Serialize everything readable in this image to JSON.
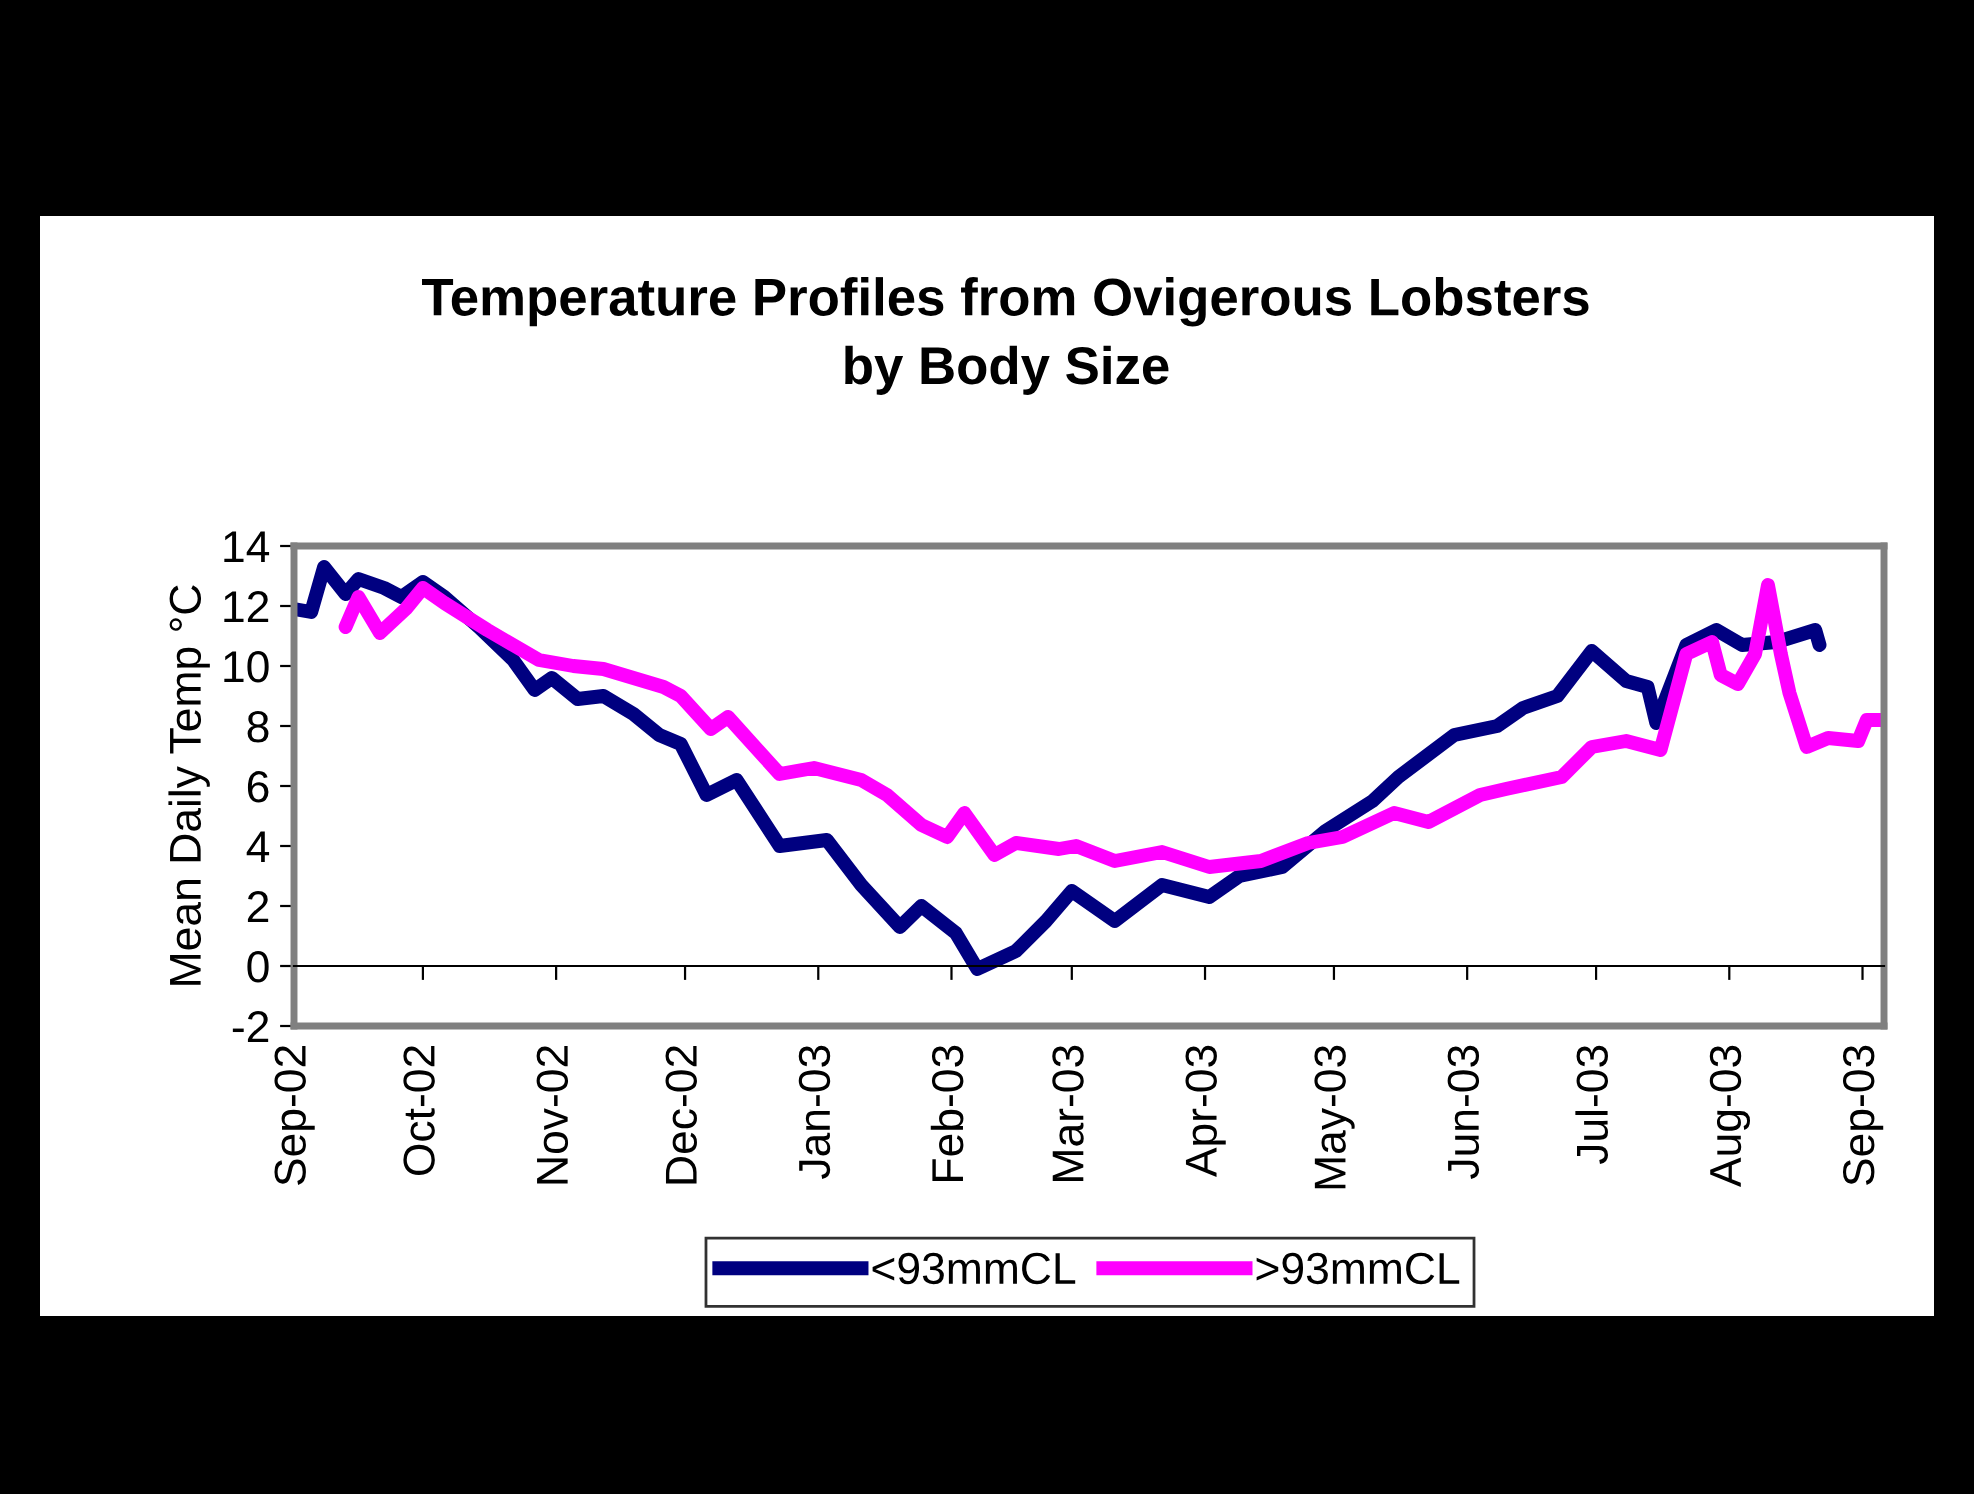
{
  "chart_data": {
    "type": "line",
    "title": "Temperature Profiles from Ovigerous Lobsters\nby Body Size",
    "ylabel": "Mean Daily Temp °C",
    "xlim": [
      "2002-09-01",
      "2003-09-06"
    ],
    "xticks": [
      {
        "value": "2002-09-01",
        "label": "Sep-02"
      },
      {
        "value": "2002-10-01",
        "label": "Oct-02"
      },
      {
        "value": "2002-11-01",
        "label": "Nov-02"
      },
      {
        "value": "2002-12-01",
        "label": "Dec-02"
      },
      {
        "value": "2003-01-01",
        "label": "Jan-03"
      },
      {
        "value": "2003-02-01",
        "label": "Feb-03"
      },
      {
        "value": "2003-03-01",
        "label": "Mar-03"
      },
      {
        "value": "2003-04-01",
        "label": "Apr-03"
      },
      {
        "value": "2003-05-01",
        "label": "May-03"
      },
      {
        "value": "2003-06-01",
        "label": "Jun-03"
      },
      {
        "value": "2003-07-01",
        "label": "Jul-03"
      },
      {
        "value": "2003-08-01",
        "label": "Aug-03"
      },
      {
        "value": "2003-09-01",
        "label": "Sep-03"
      }
    ],
    "ylim": [
      -2,
      14
    ],
    "yticks": [
      -2,
      0,
      2,
      4,
      6,
      8,
      10,
      12,
      14
    ],
    "grid": false,
    "ref_lines": [
      {
        "axis": "y",
        "value": 0,
        "color": "#000000"
      }
    ],
    "legend": "bottom",
    "marker": "none",
    "line_style": "solid",
    "series": [
      {
        "name": "<93mmCL",
        "color": "#000080",
        "x": [
          "2002-09-01",
          "2002-09-05",
          "2002-09-08",
          "2002-09-13",
          "2002-09-16",
          "2002-09-22",
          "2002-09-26",
          "2002-10-01",
          "2002-10-06",
          "2002-10-14",
          "2002-10-22",
          "2002-10-27",
          "2002-10-31",
          "2002-11-06",
          "2002-11-12",
          "2002-11-19",
          "2002-11-25",
          "2002-11-30",
          "2002-12-06",
          "2002-12-13",
          "2002-12-23",
          "2003-01-03",
          "2003-01-11",
          "2003-01-20",
          "2003-01-25",
          "2003-02-02",
          "2003-02-07",
          "2003-02-16",
          "2003-02-23",
          "2003-03-01",
          "2003-03-11",
          "2003-03-22",
          "2003-04-02",
          "2003-04-09",
          "2003-04-19",
          "2003-04-29",
          "2003-05-10",
          "2003-05-16",
          "2003-05-29",
          "2003-06-08",
          "2003-06-14",
          "2003-06-22",
          "2003-06-30",
          "2003-07-08",
          "2003-07-13",
          "2003-07-15",
          "2003-07-22",
          "2003-07-29",
          "2003-08-04",
          "2003-08-12",
          "2003-08-21",
          "2003-08-22"
        ],
        "values": [
          11.9,
          11.8,
          13.3,
          12.4,
          12.9,
          12.6,
          12.3,
          12.8,
          12.3,
          11.3,
          10.2,
          9.2,
          9.6,
          8.9,
          9.0,
          8.4,
          7.7,
          7.4,
          5.7,
          6.2,
          4.0,
          4.2,
          2.7,
          1.3,
          2.0,
          1.1,
          -0.1,
          0.5,
          1.5,
          2.5,
          1.5,
          2.7,
          2.3,
          3.0,
          3.3,
          4.5,
          5.5,
          6.3,
          7.7,
          8.0,
          8.6,
          9.0,
          10.5,
          9.5,
          9.3,
          8.1,
          10.7,
          11.2,
          10.7,
          10.8,
          11.2,
          10.7
        ]
      },
      {
        "name": ">93mmCL",
        "color": "#ff00ff",
        "x": [
          "2002-09-13",
          "2002-09-16",
          "2002-09-21",
          "2002-09-27",
          "2002-10-01",
          "2002-10-06",
          "2002-10-16",
          "2002-10-28",
          "2002-11-05",
          "2002-11-12",
          "2002-11-26",
          "2002-11-30",
          "2002-12-07",
          "2002-12-11",
          "2002-12-23",
          "2002-12-31",
          "2003-01-11",
          "2003-01-17",
          "2003-01-25",
          "2003-01-31",
          "2003-02-04",
          "2003-02-11",
          "2003-02-16",
          "2003-02-26",
          "2003-03-02",
          "2003-03-11",
          "2003-03-22",
          "2003-04-02",
          "2003-04-14",
          "2003-04-25",
          "2003-05-03",
          "2003-05-15",
          "2003-05-23",
          "2003-06-04",
          "2003-06-10",
          "2003-06-23",
          "2003-06-30",
          "2003-07-08",
          "2003-07-16",
          "2003-07-22",
          "2003-07-28",
          "2003-07-30",
          "2003-08-03",
          "2003-08-07",
          "2003-08-10",
          "2003-08-13",
          "2003-08-15",
          "2003-08-19",
          "2003-08-24",
          "2003-08-31",
          "2003-09-02",
          "2003-09-06"
        ],
        "values": [
          11.3,
          12.3,
          11.1,
          11.9,
          12.6,
          12.1,
          11.2,
          10.2,
          10.0,
          9.9,
          9.3,
          9.0,
          7.9,
          8.3,
          6.4,
          6.6,
          6.2,
          5.7,
          4.7,
          4.3,
          5.1,
          3.7,
          4.1,
          3.9,
          4.0,
          3.5,
          3.8,
          3.3,
          3.5,
          4.1,
          4.3,
          5.1,
          4.8,
          5.7,
          5.9,
          6.3,
          7.3,
          7.5,
          7.2,
          10.4,
          10.8,
          9.7,
          9.4,
          10.4,
          12.7,
          10.4,
          9.1,
          7.3,
          7.6,
          7.5,
          8.2,
          8.2
        ]
      }
    ]
  }
}
